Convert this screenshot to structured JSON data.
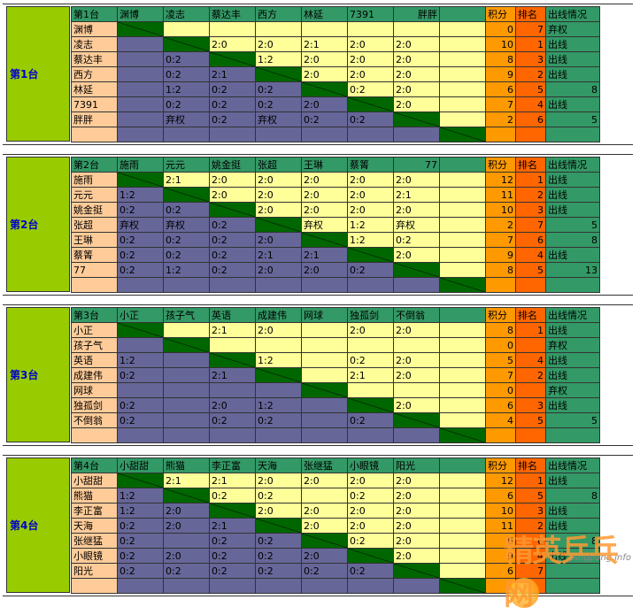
{
  "groups": [
    {
      "label": "第1台",
      "header": [
        "第1台",
        "渊博",
        "凌志",
        "蔡达丰",
        "西方",
        "林延",
        "7391",
        "胖胖",
        "",
        "积分",
        "排名",
        "出线情况"
      ],
      "rows": [
        {
          "name": "渊博",
          "cells": [
            "d",
            "y",
            "y",
            "y",
            "y",
            "y",
            "y",
            ""
          ],
          "vals": [
            "",
            "",
            "",
            "",
            "",
            "",
            "",
            ""
          ],
          "score": "0",
          "rank": "7",
          "out": "弃权"
        },
        {
          "name": "凌志",
          "cells": [
            "p",
            "d",
            "y",
            "y",
            "y",
            "y",
            "y",
            ""
          ],
          "vals": [
            "",
            "",
            "2:0",
            "2:0",
            "2:1",
            "2:0",
            "2:0",
            ""
          ],
          "score": "10",
          "rank": "1",
          "out": "出线"
        },
        {
          "name": "蔡达丰",
          "cells": [
            "p",
            "p",
            "d",
            "y",
            "y",
            "y",
            "y",
            ""
          ],
          "vals": [
            "",
            "0:2",
            "",
            "1:2",
            "2:0",
            "2:0",
            "2:0",
            ""
          ],
          "score": "8",
          "rank": "3",
          "out": "出线"
        },
        {
          "name": "西方",
          "cells": [
            "p",
            "p",
            "p",
            "d",
            "y",
            "y",
            "y",
            ""
          ],
          "vals": [
            "",
            "0:2",
            "2:1",
            "",
            "2:0",
            "2:0",
            "2:0",
            ""
          ],
          "score": "9",
          "rank": "2",
          "out": "出线"
        },
        {
          "name": "林延",
          "cells": [
            "p",
            "p",
            "p",
            "p",
            "d",
            "y",
            "y",
            ""
          ],
          "vals": [
            "",
            "1:2",
            "0:2",
            "0:2",
            "",
            "0:2",
            "2:0",
            ""
          ],
          "score": "6",
          "rank": "5",
          "out": "8"
        },
        {
          "name": "7391",
          "cells": [
            "p",
            "p",
            "p",
            "p",
            "p",
            "d",
            "y",
            ""
          ],
          "vals": [
            "",
            "0:2",
            "0:2",
            "0:2",
            "2:0",
            "",
            "2:0",
            ""
          ],
          "score": "7",
          "rank": "4",
          "out": "出线"
        },
        {
          "name": "胖胖",
          "cells": [
            "p",
            "p",
            "p",
            "p",
            "p",
            "p",
            "d",
            ""
          ],
          "vals": [
            "",
            "弃权",
            "0:2",
            "弃权",
            "0:2",
            "0:2",
            "",
            ""
          ],
          "score": "2",
          "rank": "6",
          "out": "5"
        },
        {
          "name": "",
          "cells": [
            "p",
            "p",
            "p",
            "p",
            "p",
            "p",
            "p",
            "d"
          ],
          "vals": [
            "",
            "",
            "",
            "",
            "",
            "",
            "",
            ""
          ],
          "score": "",
          "rank": "",
          "out": ""
        }
      ]
    },
    {
      "label": "第2台",
      "header": [
        "第2台",
        "施雨",
        "元元",
        "姚金挺",
        "张超",
        "王琳",
        "蔡箐",
        "77",
        "",
        "积分",
        "排名",
        "出线情况"
      ],
      "rows": [
        {
          "name": "施雨",
          "cells": [
            "d",
            "y",
            "y",
            "y",
            "y",
            "y",
            "y",
            ""
          ],
          "vals": [
            "",
            "2:1",
            "2:0",
            "2:0",
            "2:0",
            "2:0",
            "2:0",
            ""
          ],
          "score": "12",
          "rank": "1",
          "out": "出线"
        },
        {
          "name": "元元",
          "cells": [
            "p",
            "d",
            "y",
            "y",
            "y",
            "y",
            "y",
            ""
          ],
          "vals": [
            "1:2",
            "",
            "2:0",
            "2:0",
            "2:0",
            "2:0",
            "2:1",
            ""
          ],
          "score": "11",
          "rank": "2",
          "out": "出线"
        },
        {
          "name": "姚金挺",
          "cells": [
            "p",
            "p",
            "d",
            "y",
            "y",
            "y",
            "y",
            ""
          ],
          "vals": [
            "0:2",
            "0:2",
            "",
            "2:0",
            "2:0",
            "2:0",
            "2:0",
            ""
          ],
          "score": "10",
          "rank": "3",
          "out": "出线"
        },
        {
          "name": "张超",
          "cells": [
            "p",
            "p",
            "p",
            "d",
            "y",
            "y",
            "y",
            ""
          ],
          "vals": [
            "弃权",
            "弃权",
            "0:2",
            "",
            "弃权",
            "1:2",
            "弃权",
            ""
          ],
          "score": "2",
          "rank": "7",
          "out": "5"
        },
        {
          "name": "王琳",
          "cells": [
            "p",
            "p",
            "p",
            "p",
            "d",
            "y",
            "y",
            ""
          ],
          "vals": [
            "0:2",
            "0:2",
            "0:2",
            "2:0",
            "",
            "1:2",
            "0:2",
            ""
          ],
          "score": "7",
          "rank": "6",
          "out": "8"
        },
        {
          "name": "蔡箐",
          "cells": [
            "p",
            "p",
            "p",
            "p",
            "p",
            "d",
            "y",
            ""
          ],
          "vals": [
            "0:2",
            "0:2",
            "0:2",
            "2:1",
            "2:1",
            "",
            "2:0",
            ""
          ],
          "score": "9",
          "rank": "4",
          "out": "出线"
        },
        {
          "name": "77",
          "cells": [
            "p",
            "p",
            "p",
            "p",
            "p",
            "p",
            "d",
            ""
          ],
          "vals": [
            "0:2",
            "1:2",
            "0:2",
            "2:0",
            "2:0",
            "0:2",
            "",
            ""
          ],
          "score": "8",
          "rank": "5",
          "out": "13"
        },
        {
          "name": "",
          "cells": [
            "p",
            "p",
            "p",
            "p",
            "p",
            "p",
            "p",
            "d"
          ],
          "vals": [
            "",
            "",
            "",
            "",
            "",
            "",
            "",
            ""
          ],
          "score": "",
          "rank": "",
          "out": ""
        }
      ]
    },
    {
      "label": "第3台",
      "header": [
        "第3台",
        "小正",
        "孩子气",
        "英语",
        "成建伟",
        "网球",
        "独孤剑",
        "不倒翁",
        "",
        "积分",
        "排名",
        "出线情况"
      ],
      "rows": [
        {
          "name": "小正",
          "cells": [
            "d",
            "y",
            "y",
            "y",
            "y",
            "y",
            "y",
            ""
          ],
          "vals": [
            "",
            "",
            "2:1",
            "2:0",
            "",
            "2:0",
            "2:0",
            ""
          ],
          "score": "8",
          "rank": "1",
          "out": "出线"
        },
        {
          "name": "孩子气",
          "cells": [
            "p",
            "d",
            "y",
            "y",
            "y",
            "y",
            "y",
            ""
          ],
          "vals": [
            "",
            "",
            "",
            "",
            "",
            "",
            "",
            ""
          ],
          "score": "0",
          "rank": "",
          "out": "弃权"
        },
        {
          "name": "英语",
          "cells": [
            "p",
            "p",
            "d",
            "y",
            "y",
            "y",
            "y",
            ""
          ],
          "vals": [
            "1:2",
            "",
            "",
            "1:2",
            "",
            "0:2",
            "2:0",
            ""
          ],
          "score": "5",
          "rank": "4",
          "out": "出线"
        },
        {
          "name": "成建伟",
          "cells": [
            "p",
            "p",
            "p",
            "d",
            "y",
            "y",
            "y",
            ""
          ],
          "vals": [
            "0:2",
            "",
            "2:1",
            "",
            "",
            "2:1",
            "2:0",
            ""
          ],
          "score": "7",
          "rank": "2",
          "out": "出线"
        },
        {
          "name": "网球",
          "cells": [
            "p",
            "p",
            "p",
            "p",
            "d",
            "y",
            "y",
            ""
          ],
          "vals": [
            "",
            "",
            "",
            "",
            "",
            "",
            "",
            ""
          ],
          "score": "0",
          "rank": "",
          "out": "弃权"
        },
        {
          "name": "独孤剑",
          "cells": [
            "p",
            "p",
            "p",
            "p",
            "p",
            "d",
            "y",
            ""
          ],
          "vals": [
            "0:2",
            "",
            "2:0",
            "1:2",
            "",
            "",
            "2:0",
            ""
          ],
          "score": "6",
          "rank": "3",
          "out": "出线"
        },
        {
          "name": "不倒翁",
          "cells": [
            "p",
            "p",
            "p",
            "p",
            "p",
            "p",
            "d",
            ""
          ],
          "vals": [
            "0:2",
            "",
            "0:2",
            "0:2",
            "",
            "0:2",
            "",
            ""
          ],
          "score": "4",
          "rank": "5",
          "out": "5"
        },
        {
          "name": "",
          "cells": [
            "p",
            "p",
            "p",
            "p",
            "p",
            "p",
            "p",
            "d"
          ],
          "vals": [
            "",
            "",
            "",
            "",
            "",
            "",
            "",
            ""
          ],
          "score": "",
          "rank": "",
          "out": ""
        }
      ]
    },
    {
      "label": "第4台",
      "header": [
        "第4台",
        "小甜甜",
        "熊猫",
        "李正富",
        "天海",
        "张继猛",
        "小眼镜",
        "阳光",
        "",
        "积分",
        "排名",
        "出线情况"
      ],
      "rows": [
        {
          "name": "小甜甜",
          "cells": [
            "d",
            "y",
            "y",
            "y",
            "y",
            "y",
            "y",
            ""
          ],
          "vals": [
            "",
            "2:1",
            "2:1",
            "2:0",
            "2:0",
            "2:0",
            "2:0",
            ""
          ],
          "score": "12",
          "rank": "1",
          "out": "出线"
        },
        {
          "name": "熊猫",
          "cells": [
            "p",
            "d",
            "y",
            "y",
            "y",
            "y",
            "y",
            ""
          ],
          "vals": [
            "1:2",
            "",
            "0:2",
            "0:2",
            "",
            "0:2",
            "2:0",
            ""
          ],
          "score": "6",
          "rank": "5",
          "out": "8"
        },
        {
          "name": "李正富",
          "cells": [
            "p",
            "p",
            "d",
            "y",
            "y",
            "y",
            "y",
            ""
          ],
          "vals": [
            "1:2",
            "2:0",
            "",
            "2:0",
            "2:0",
            "2:0",
            "2:0",
            ""
          ],
          "score": "10",
          "rank": "3",
          "out": "出线"
        },
        {
          "name": "天海",
          "cells": [
            "p",
            "p",
            "p",
            "d",
            "y",
            "y",
            "y",
            ""
          ],
          "vals": [
            "0:2",
            "2:0",
            "2:1",
            "",
            "2:0",
            "2:0",
            "2:0",
            ""
          ],
          "score": "11",
          "rank": "2",
          "out": "出线"
        },
        {
          "name": "张继猛",
          "cells": [
            "p",
            "p",
            "p",
            "p",
            "d",
            "y",
            "y",
            ""
          ],
          "vals": [
            "0:2",
            "",
            "0:2",
            "0:2",
            "",
            "0:2",
            "2:0",
            ""
          ],
          "score": "6",
          "rank": "6",
          "out": "8"
        },
        {
          "name": "小眼镜",
          "cells": [
            "p",
            "p",
            "p",
            "p",
            "p",
            "d",
            "y",
            ""
          ],
          "vals": [
            "0:2",
            "2:0",
            "0:2",
            "0:2",
            "2:0",
            "",
            "2:0",
            ""
          ],
          "score": "9",
          "rank": "4",
          "out": "出线"
        },
        {
          "name": "阳光",
          "cells": [
            "p",
            "p",
            "p",
            "p",
            "p",
            "p",
            "d",
            ""
          ],
          "vals": [
            "0:2",
            "0:2",
            "0:2",
            "0:2",
            "0:2",
            "0:2",
            "",
            ""
          ],
          "score": "6",
          "rank": "7",
          "out": ""
        },
        {
          "name": "",
          "cells": [
            "p",
            "p",
            "p",
            "p",
            "p",
            "p",
            "p",
            "d"
          ],
          "vals": [
            "",
            "",
            "",
            "",
            "",
            "",
            "",
            ""
          ],
          "score": "",
          "rank": "",
          "out": ""
        }
      ]
    }
  ],
  "watermark": {
    "url": "pingpang.info",
    "logo": "精英乒乓网"
  }
}
